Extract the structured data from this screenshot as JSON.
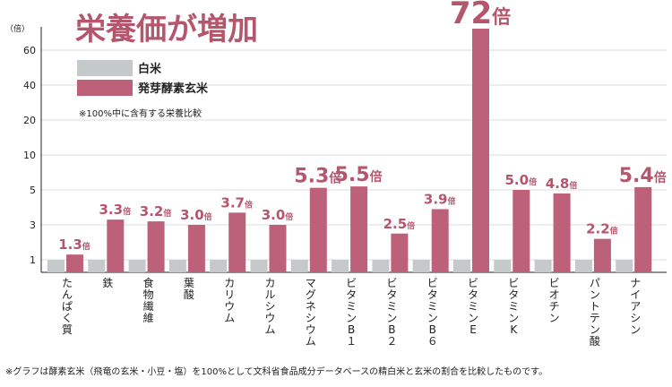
{
  "title": "栄養価が増加",
  "y_unit": "（倍）",
  "legend": {
    "items": [
      {
        "label": "白米",
        "color": "#c6c9c9"
      },
      {
        "label": "発芽酵素玄米",
        "color": "#bd6079"
      }
    ],
    "note": "※100%中に含有する栄養比較"
  },
  "footnote": "※グラフは酵素玄米（飛竜の玄米・小豆・塩）を100%として文科省食品成分データベースの精白米と玄米の割合を比較したものです。",
  "chart_data": {
    "type": "bar",
    "title": "栄養価が増加",
    "ylabel": "倍",
    "y_scale": "nonlinear",
    "y_ticks": [
      1,
      3,
      5,
      10,
      20,
      40,
      60
    ],
    "ylim": [
      0,
      72
    ],
    "categories": [
      "たんぱく質",
      "鉄",
      "食物繊維",
      "葉酸",
      "カリウム",
      "カルシウム",
      "マグネシウム",
      "ビタミンB１",
      "ビタミンB２",
      "ビタミンB６",
      "ビタミンE",
      "ビタミンK",
      "ビオチン",
      "パントテン酸",
      "ナイアシン"
    ],
    "series": [
      {
        "name": "白米",
        "color": "#c6c9c9",
        "values": [
          1,
          1,
          1,
          1,
          1,
          1,
          1,
          1,
          1,
          1,
          1,
          1,
          1,
          1,
          1
        ]
      },
      {
        "name": "発芽酵素玄米",
        "color": "#bd6079",
        "values": [
          1.3,
          3.3,
          3.2,
          3.0,
          3.7,
          3.0,
          5.3,
          5.5,
          2.5,
          3.9,
          72,
          5.0,
          4.8,
          2.2,
          5.4
        ]
      }
    ],
    "value_labels": [
      "1.3倍",
      "3.3倍",
      "3.2倍",
      "3.0倍",
      "3.7倍",
      "3.0倍",
      "5.3倍",
      "5.5倍",
      "2.5倍",
      "3.9倍",
      "72倍",
      "5.0倍",
      "4.8倍",
      "2.2倍",
      "5.4倍"
    ]
  }
}
